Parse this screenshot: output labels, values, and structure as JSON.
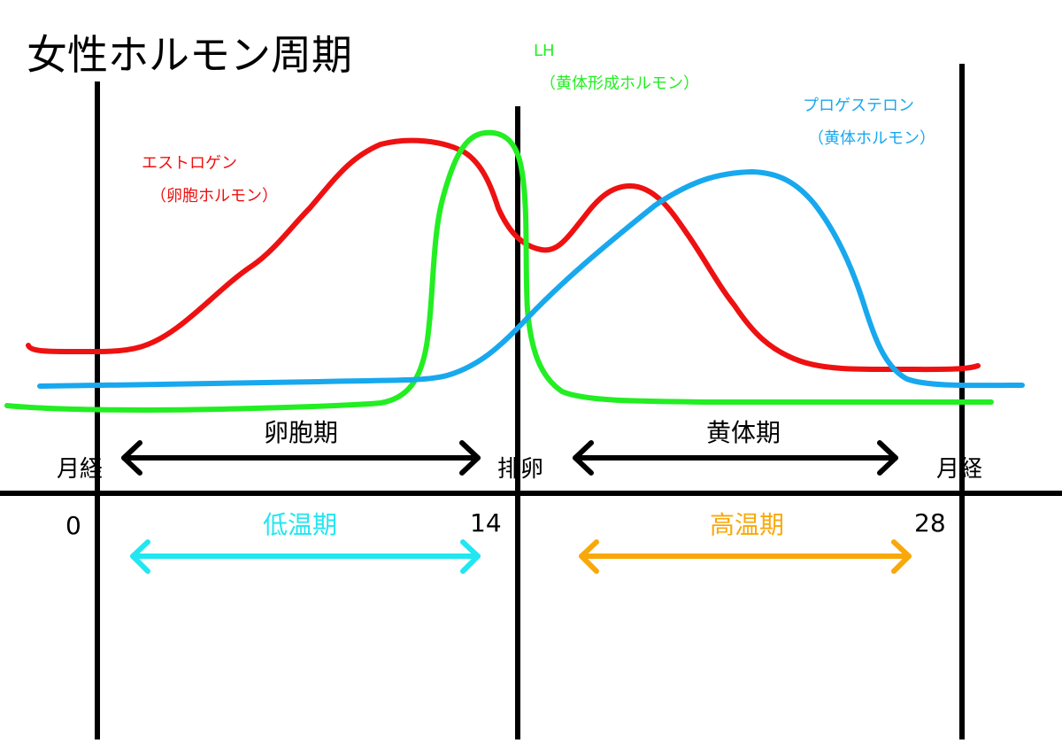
{
  "title": "女性ホルモン周期",
  "colors": {
    "estrogen": "#ee1111",
    "lh": "#22ee22",
    "progesterone": "#18a8ee",
    "phase_arrow": "#000000",
    "low_temp": "#22e6f0",
    "high_temp": "#f9a80a"
  },
  "hormones": {
    "estrogen": {
      "name": "エストロゲン",
      "subname": "（卵胞ホルモン）"
    },
    "lh": {
      "name": "LH",
      "subname": "（黄体形成ホルモン）"
    },
    "progesterone": {
      "name": "プロゲステロン",
      "subname": "（黄体ホルモン）"
    }
  },
  "phases": {
    "follicular": "卵胞期",
    "luteal": "黄体期"
  },
  "events": {
    "menstruation_start": "月経",
    "ovulation": "排卵",
    "menstruation_end": "月経"
  },
  "days": {
    "start": "0",
    "ovulation": "14",
    "end": "28"
  },
  "temperature": {
    "low": "低温期",
    "high": "高温期"
  }
}
